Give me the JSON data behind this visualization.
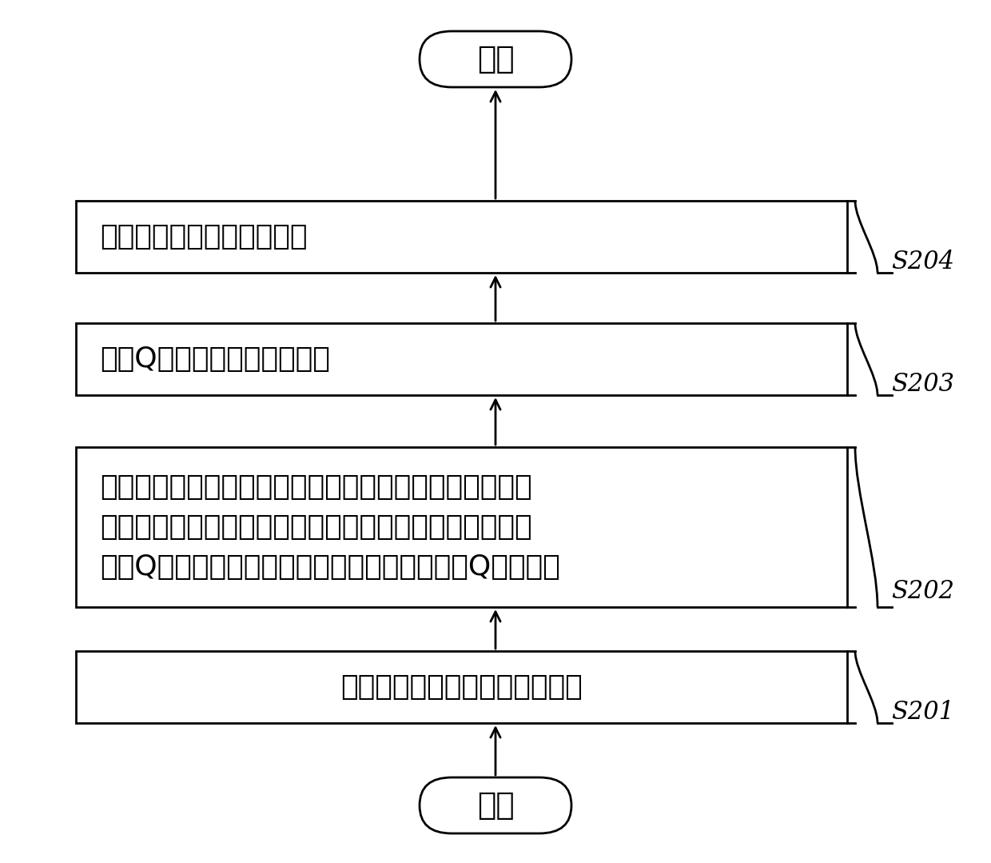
{
  "bg_color": "#ffffff",
  "border_color": "#000000",
  "text_color": "#000000",
  "arrow_color": "#000000",
  "start_end_label": [
    "开始",
    "结束"
  ],
  "box_labels": [
    "接收各传感节点感知的环境信息",
    "基于各传感节点间的物理关系网络和通信数据建立各传感\n节点间的社会关系网络，并基于环境信息和社会关系网络\n训练Q学习网络探索最优发射功率的能力，建立Q学习模型",
    "应用Q学习模型确定传输功率",
    "以该传输功率进行信息传输"
  ],
  "step_labels": [
    "S201",
    "S202",
    "S203",
    "S204"
  ],
  "font_size_main": 26,
  "font_size_step": 22,
  "font_size_start_end": 28,
  "lw": 2.0
}
